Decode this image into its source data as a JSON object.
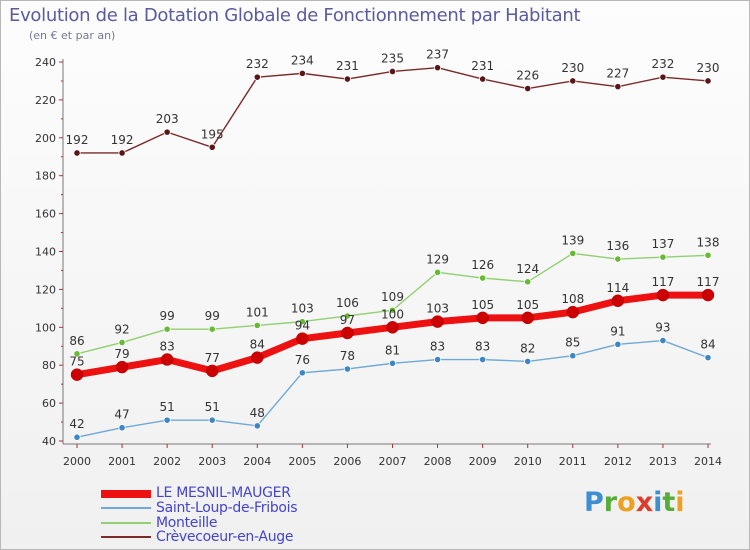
{
  "header": {
    "title": "Evolution de la Dotation Globale de Fonctionnement par Habitant",
    "subtitle": "(en € et par an)"
  },
  "brand": {
    "letters": [
      "P",
      "r",
      "o",
      "x",
      "i",
      "t",
      "i"
    ],
    "colors": [
      "#3f8fd0",
      "#58ad3a",
      "#f0a020",
      "#e03a2a",
      "#3f8fd0",
      "#58ad3a",
      "#f0a020"
    ]
  },
  "chart_data": {
    "type": "line",
    "title": "Evolution de la Dotation Globale de Fonctionnement par Habitant",
    "subtitle": "(en € et par an)",
    "x": [
      2000,
      2001,
      2002,
      2003,
      2004,
      2005,
      2006,
      2007,
      2008,
      2009,
      2010,
      2011,
      2012,
      2013,
      2014
    ],
    "x_tick_labels": [
      "2000",
      "2001",
      "2002",
      "2003",
      "2004",
      "2005",
      "2006",
      "2007",
      "2008",
      "2009",
      "2010",
      "2011",
      "2012",
      "2013",
      "2014"
    ],
    "ylim": [
      40,
      240
    ],
    "y_ticks": [
      40,
      60,
      80,
      100,
      120,
      140,
      160,
      180,
      200,
      220,
      240
    ],
    "grid": false,
    "legend_position": "bottom-left",
    "series": [
      {
        "name": "Crèvecoeur-en-Auge",
        "color": "#7b2a2a",
        "marker": "#5a1616",
        "values": [
          192,
          192,
          203,
          195,
          232,
          234,
          231,
          235,
          237,
          231,
          226,
          230,
          227,
          232,
          230
        ]
      },
      {
        "name": "Monteille",
        "color": "#90d070",
        "marker": "#66bb33",
        "values": [
          86,
          92,
          99,
          99,
          101,
          103,
          106,
          109,
          129,
          126,
          124,
          139,
          136,
          137,
          138
        ]
      },
      {
        "name": "Saint-Loup-de-Fribois",
        "color": "#6fa8d6",
        "marker": "#3d86c6",
        "values": [
          42,
          47,
          51,
          51,
          48,
          76,
          78,
          81,
          83,
          83,
          82,
          85,
          91,
          93,
          84
        ]
      },
      {
        "name": "LE MESNIL-MAUGER",
        "color": "#ee1111",
        "marker": "#cc0000",
        "values": [
          75,
          79,
          83,
          77,
          84,
          94,
          97,
          100,
          103,
          105,
          105,
          108,
          114,
          117,
          117
        ]
      }
    ],
    "legend": [
      {
        "label": "LE MESNIL-MAUGER",
        "color": "#ee1111",
        "text_color": "#4444cc"
      },
      {
        "label": "Saint-Loup-de-Fribois",
        "color": "#6fa8d6",
        "text_color": "#4444cc"
      },
      {
        "label": "Monteille",
        "color": "#90d070",
        "text_color": "#4444cc"
      },
      {
        "label": "Crèvecoeur-en-Auge",
        "color": "#7b2a2a",
        "text_color": "#4444cc"
      }
    ]
  }
}
